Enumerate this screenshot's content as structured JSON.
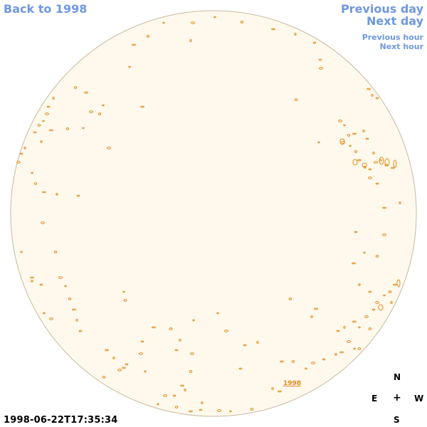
{
  "nav": {
    "back_label": "Back to 1998",
    "previous_day": "Previous day",
    "next_day": "Next day",
    "previous_hour": "Previous hour",
    "next_hour": "Next hour"
  },
  "timestamp": "1998-06-22T17:35:34",
  "year_label": "1998",
  "compass": {
    "n": "N",
    "e": "E",
    "center": "+",
    "w": "W",
    "s": "S"
  },
  "colors": {
    "disk_fill": "#fef9ec",
    "disk_border": "#c8b9a0",
    "contour": "#e38a1a",
    "link": "#6f98e0"
  }
}
